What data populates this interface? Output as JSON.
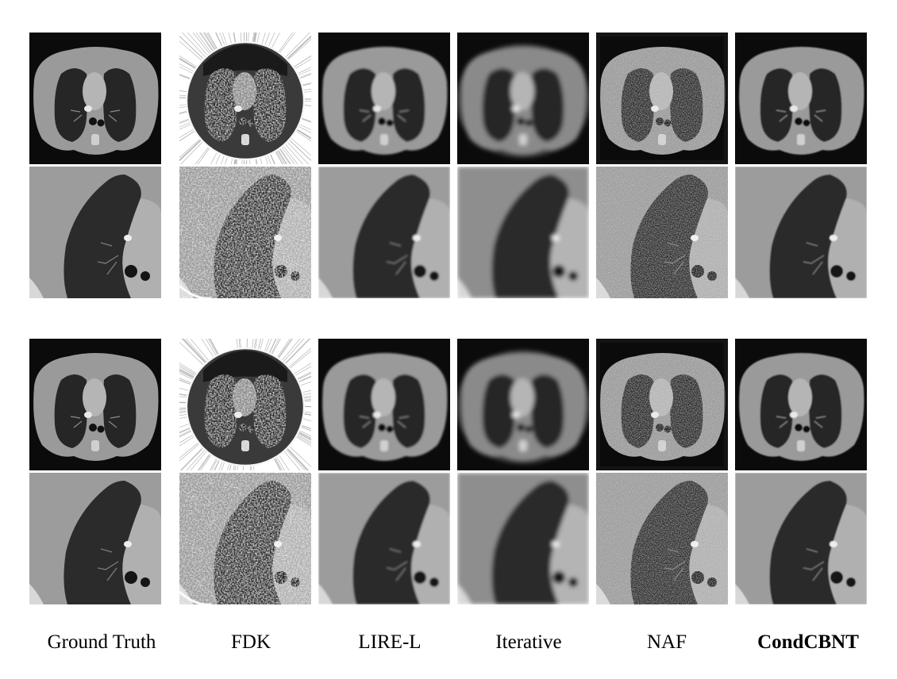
{
  "methods": [
    {
      "label": "Ground Truth",
      "bold": false
    },
    {
      "label": "FDK",
      "bold": false
    },
    {
      "label": "LIRE-L",
      "bold": false
    },
    {
      "label": "Iterative",
      "bold": false
    },
    {
      "label": "NAF",
      "bold": false
    },
    {
      "label": "CondCBNT",
      "bold": true
    }
  ]
}
